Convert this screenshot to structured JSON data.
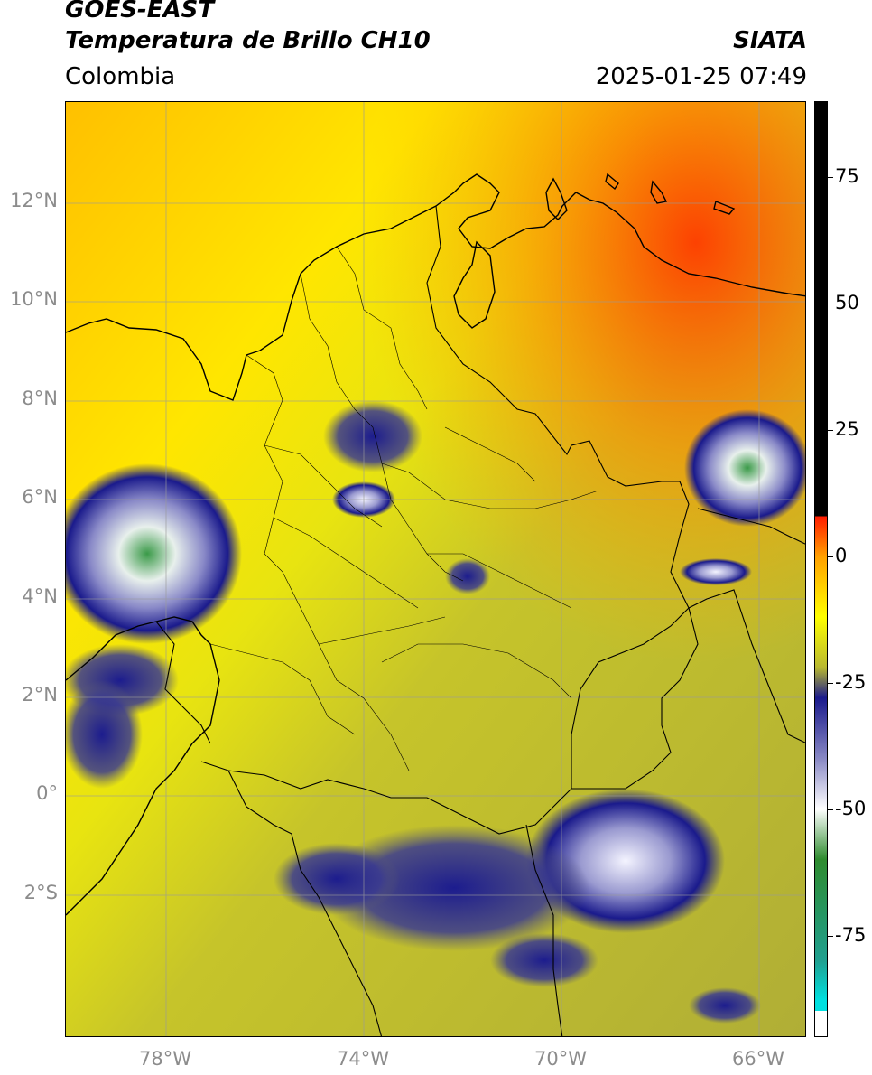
{
  "header": {
    "satellite": "GOES-EAST",
    "product": "Temperatura de Brillo CH10",
    "region": "Colombia",
    "source": "SIATA",
    "timestamp": "2025-01-25 07:49"
  },
  "map": {
    "lat_labels": [
      "12°N",
      "10°N",
      "8°N",
      "6°N",
      "4°N",
      "2°N",
      "0°",
      "2°S"
    ],
    "lon_labels": [
      "78°W",
      "74°W",
      "70°W",
      "66°W"
    ],
    "lon_range": [
      -80,
      -65
    ],
    "lat_range": [
      -5,
      14
    ]
  },
  "colorbar": {
    "ticks": [
      "75",
      "50",
      "25",
      "0",
      "-25",
      "-50",
      "-75"
    ],
    "tick_values": [
      75,
      50,
      25,
      0,
      -25,
      -50,
      -75
    ],
    "range": [
      -95,
      90
    ],
    "colors": {
      "black": "#000000",
      "red": "#ff1a00",
      "orange": "#ffa000",
      "yellow": "#ffff00",
      "olive": "#b8b830",
      "navy": "#1a1a8c",
      "white": "#ffffff",
      "green": "#2e8b2e",
      "cyan": "#00e0e0"
    }
  }
}
